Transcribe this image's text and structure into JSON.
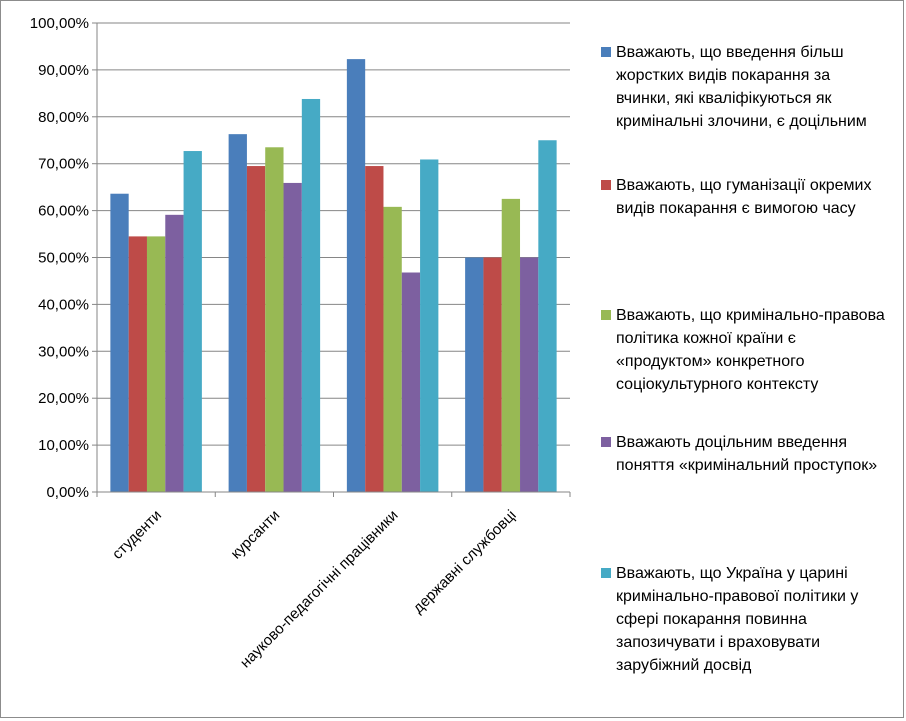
{
  "chart_data": {
    "type": "bar",
    "categories": [
      "студенти",
      "курсанти",
      "науково-педагогічні працівники",
      "державні службовці"
    ],
    "ylim": [
      0,
      100
    ],
    "yticks": [
      "0,00%",
      "10,00%",
      "20,00%",
      "30,00%",
      "40,00%",
      "50,00%",
      "60,00%",
      "70,00%",
      "80,00%",
      "90,00%",
      "100,00%"
    ],
    "grid": true,
    "legend_position": "right",
    "series": [
      {
        "name": "Вважають, що введення більш жорстких видів покарання за вчинки, які кваліфікуються як кримінальні злочини, є доцільним",
        "color": "#4a7ebb",
        "values": [
          63.6,
          76.3,
          92.3,
          50.0
        ]
      },
      {
        "name": "Вважають, що гуманізації окремих видів покарання є вимогою часу",
        "color": "#be4b48",
        "values": [
          54.5,
          69.5,
          69.5,
          50.0
        ]
      },
      {
        "name": "Вважають, що кримінально-правова політика кожної країни є «продуктом» конкретного соціокультурного контексту",
        "color": "#98b954",
        "values": [
          54.5,
          73.5,
          60.8,
          62.5
        ]
      },
      {
        "name": "Вважають доцільним введення поняття «кримінальний проступок»",
        "color": "#7d60a0",
        "values": [
          59.1,
          65.9,
          46.8,
          50.0
        ]
      },
      {
        "name": "Вважають, що Україна у царині кримінально-правової політики у сфері покарання повинна запозичувати і враховувати зарубіжний досвід",
        "color": "#46aac5",
        "values": [
          72.7,
          83.8,
          70.9,
          75.0
        ]
      }
    ]
  }
}
